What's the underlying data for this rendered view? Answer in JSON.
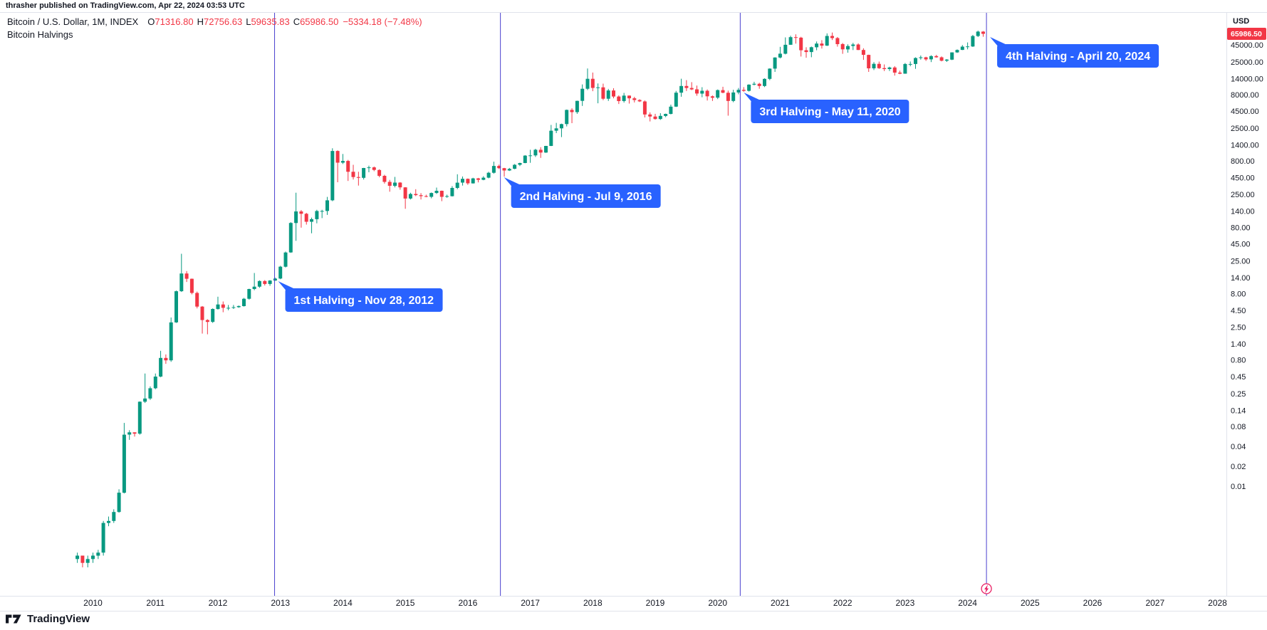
{
  "attribution": {
    "text": "thrasher published on TradingView.com, Apr 22, 2024 03:53 UTC"
  },
  "legend": {
    "symbol": "Bitcoin / U.S. Dollar, 1M, INDEX",
    "o_label": "O",
    "o_value": "71316.80",
    "h_label": "H",
    "h_value": "72756.63",
    "l_label": "L",
    "l_value": "59635.83",
    "c_label": "C",
    "c_value": "65986.50",
    "change": "−5334.18 (−7.48%)",
    "drawing_title": "Bitcoin Halvings"
  },
  "price_scale": {
    "currency_label": "USD",
    "last_price": "65986.50",
    "ticks": [
      "45000.00",
      "25000.00",
      "14000.00",
      "8000.00",
      "4500.00",
      "2500.00",
      "1400.00",
      "800.00",
      "450.00",
      "250.00",
      "140.00",
      "80.00",
      "45.00",
      "25.00",
      "14.00",
      "8.00",
      "4.50",
      "2.50",
      "1.40",
      "0.80",
      "0.45",
      "0.25",
      "0.14",
      "0.08",
      "0.04",
      "0.02",
      "0.01"
    ]
  },
  "time_scale": {
    "years": [
      "2010",
      "2011",
      "2012",
      "2013",
      "2014",
      "2015",
      "2016",
      "2017",
      "2018",
      "2019",
      "2020",
      "2021",
      "2022",
      "2023",
      "2024",
      "2025",
      "2026",
      "2027",
      "2028"
    ]
  },
  "halvings": [
    {
      "label": "1st Halving - Nov 28, 2012",
      "date": "2012-11-28"
    },
    {
      "label": "2nd Halving - Jul 9, 2016",
      "date": "2016-07-09"
    },
    {
      "label": "3rd Halving - May 11, 2020",
      "date": "2020-05-11"
    },
    {
      "label": "4th Halving - April 20, 2024",
      "date": "2024-04-20"
    }
  ],
  "footer": {
    "brand": "TradingView"
  },
  "colors": {
    "up": "#089981",
    "down": "#F23645",
    "halving_line": "#4a41cf",
    "halving_label_bg": "#2962FF",
    "badge_bg": "#F23645",
    "axis_text": "#131722",
    "border": "#e0e3eb",
    "event_icon": "#e91e63"
  },
  "chart_data": {
    "type": "candlestick",
    "title": "Bitcoin / U.S. Dollar, 1M, INDEX — Bitcoin Halvings",
    "ylabel": "USD",
    "scale": "log",
    "grid": false,
    "interval": "1M",
    "start_month": "2009-10",
    "ylim": [
      0.0005,
      90000
    ],
    "ohlc": [
      [
        0.0008,
        0.001,
        0.0007,
        0.0009
      ],
      [
        0.0009,
        0.0009,
        0.0006,
        0.0007
      ],
      [
        0.0007,
        0.0009,
        0.0006,
        0.0008
      ],
      [
        0.0008,
        0.001,
        0.0007,
        0.0009
      ],
      [
        0.0009,
        0.0011,
        0.0008,
        0.001
      ],
      [
        0.001,
        0.003,
        0.0009,
        0.0028
      ],
      [
        0.0028,
        0.0035,
        0.0025,
        0.003
      ],
      [
        0.003,
        0.0045,
        0.0028,
        0.0041
      ],
      [
        0.0041,
        0.009,
        0.004,
        0.008
      ],
      [
        0.008,
        0.09,
        0.0078,
        0.06
      ],
      [
        0.06,
        0.07,
        0.05,
        0.065
      ],
      [
        0.065,
        0.065,
        0.056,
        0.062
      ],
      [
        0.062,
        0.19,
        0.06,
        0.188
      ],
      [
        0.188,
        0.5,
        0.18,
        0.21
      ],
      [
        0.21,
        0.32,
        0.2,
        0.3
      ],
      [
        0.3,
        0.5,
        0.29,
        0.45
      ],
      [
        0.45,
        1.1,
        0.44,
        0.86
      ],
      [
        0.86,
        0.97,
        0.7,
        0.79
      ],
      [
        0.79,
        3.5,
        0.75,
        2.95
      ],
      [
        2.95,
        8.9,
        2.9,
        8.7
      ],
      [
        8.7,
        31.9,
        8.5,
        16.1
      ],
      [
        16.1,
        17.5,
        12,
        13.4
      ],
      [
        13.4,
        13.5,
        7.8,
        8.2
      ],
      [
        8.2,
        8.6,
        4.8,
        5.1
      ],
      [
        5.1,
        5.2,
        2,
        3.2
      ],
      [
        3.2,
        3.3,
        1.95,
        3
      ],
      [
        3,
        4.8,
        2.9,
        4.7
      ],
      [
        4.7,
        7.2,
        4.6,
        5.5
      ],
      [
        5.5,
        6.1,
        4.2,
        4.9
      ],
      [
        4.9,
        5.4,
        4.5,
        4.9
      ],
      [
        4.9,
        5.4,
        4.7,
        5
      ],
      [
        5,
        5.3,
        4.9,
        5.2
      ],
      [
        5.2,
        6.9,
        5.1,
        6.7
      ],
      [
        6.7,
        9.5,
        6.5,
        9.4
      ],
      [
        9.4,
        16.4,
        9,
        10.2
      ],
      [
        10.2,
        12.7,
        9.8,
        12.4
      ],
      [
        12.4,
        12.8,
        10.6,
        11.2
      ],
      [
        11.2,
        12.8,
        10.5,
        12.6
      ],
      [
        12.6,
        13.9,
        12.5,
        13.5
      ],
      [
        13.5,
        21,
        13.2,
        20.4
      ],
      [
        20.4,
        34.5,
        19.8,
        33.4
      ],
      [
        33.4,
        95.7,
        33,
        93
      ],
      [
        93,
        266,
        50,
        139
      ],
      [
        139,
        146,
        79,
        128
      ],
      [
        128,
        132,
        88,
        97
      ],
      [
        97,
        112,
        65,
        106
      ],
      [
        106,
        147,
        92,
        141
      ],
      [
        141,
        147,
        110,
        141
      ],
      [
        141,
        230,
        123,
        204
      ],
      [
        204,
        1242,
        198,
        1130
      ],
      [
        1130,
        1156,
        382,
        754
      ],
      [
        754,
        1020,
        720,
        800
      ],
      [
        800,
        830,
        400,
        550
      ],
      [
        550,
        700,
        420,
        458
      ],
      [
        458,
        550,
        340,
        446
      ],
      [
        446,
        630,
        420,
        627
      ],
      [
        627,
        680,
        540,
        640
      ],
      [
        640,
        660,
        560,
        585
      ],
      [
        585,
        600,
        455,
        478
      ],
      [
        478,
        495,
        365,
        387
      ],
      [
        387,
        415,
        275,
        338
      ],
      [
        338,
        460,
        320,
        378
      ],
      [
        378,
        384,
        295,
        320
      ],
      [
        320,
        322,
        152,
        217
      ],
      [
        217,
        265,
        210,
        254
      ],
      [
        254,
        300,
        236,
        244
      ],
      [
        244,
        262,
        210,
        236
      ],
      [
        236,
        248,
        227,
        230
      ],
      [
        230,
        268,
        219,
        263
      ],
      [
        263,
        318,
        255,
        284
      ],
      [
        284,
        286,
        198,
        230
      ],
      [
        230,
        248,
        223,
        236
      ],
      [
        236,
        334,
        233,
        314
      ],
      [
        314,
        504,
        300,
        377
      ],
      [
        377,
        467,
        340,
        430
      ],
      [
        430,
        436,
        350,
        368
      ],
      [
        368,
        447,
        365,
        437
      ],
      [
        437,
        444,
        380,
        416
      ],
      [
        416,
        470,
        410,
        448
      ],
      [
        448,
        550,
        438,
        531
      ],
      [
        531,
        780,
        515,
        673
      ],
      [
        673,
        705,
        605,
        624
      ],
      [
        624,
        630,
        465,
        575
      ],
      [
        575,
        628,
        565,
        609
      ],
      [
        609,
        720,
        600,
        700
      ],
      [
        700,
        755,
        670,
        745
      ],
      [
        745,
        980,
        740,
        963
      ],
      [
        963,
        1180,
        750,
        970
      ],
      [
        970,
        1220,
        920,
        1179
      ],
      [
        1179,
        1290,
        890,
        1071
      ],
      [
        1071,
        1350,
        1060,
        1347
      ],
      [
        1347,
        2790,
        1340,
        2286
      ],
      [
        2286,
        3000,
        2100,
        2480
      ],
      [
        2480,
        2920,
        1830,
        2875
      ],
      [
        2875,
        4765,
        2650,
        4703
      ],
      [
        4703,
        4980,
        2970,
        4360
      ],
      [
        4360,
        6480,
        4110,
        6440
      ],
      [
        6440,
        11400,
        5400,
        9800
      ],
      [
        9800,
        19800,
        9380,
        13850
      ],
      [
        13850,
        17200,
        9000,
        10100
      ],
      [
        10100,
        11790,
        5920,
        10300
      ],
      [
        10300,
        11700,
        6600,
        6930
      ],
      [
        6930,
        9760,
        6430,
        9240
      ],
      [
        9240,
        9990,
        7040,
        7490
      ],
      [
        7490,
        7780,
        5770,
        6400
      ],
      [
        6400,
        8500,
        6070,
        7730
      ],
      [
        7730,
        7770,
        5860,
        7030
      ],
      [
        7030,
        7410,
        6100,
        6630
      ],
      [
        6630,
        6810,
        6190,
        6320
      ],
      [
        6320,
        6540,
        3620,
        4020
      ],
      [
        4020,
        4310,
        3150,
        3740
      ],
      [
        3740,
        4110,
        3350,
        3430
      ],
      [
        3430,
        4200,
        3330,
        3820
      ],
      [
        3820,
        4140,
        3660,
        4100
      ],
      [
        4100,
        5650,
        4030,
        5270
      ],
      [
        5270,
        9100,
        5210,
        8560
      ],
      [
        8560,
        13880,
        7430,
        10800
      ],
      [
        10800,
        13200,
        9080,
        10080
      ],
      [
        10080,
        12320,
        9360,
        9600
      ],
      [
        9600,
        10950,
        7700,
        8290
      ],
      [
        8290,
        10350,
        7300,
        9150
      ],
      [
        9150,
        9550,
        6520,
        7550
      ],
      [
        7550,
        7760,
        6430,
        7190
      ],
      [
        7190,
        9570,
        6850,
        9350
      ],
      [
        9350,
        10500,
        8400,
        8540
      ],
      [
        8540,
        9180,
        3850,
        6420
      ],
      [
        6420,
        9460,
        6140,
        8620
      ],
      [
        8620,
        10070,
        8100,
        9450
      ],
      [
        9450,
        10380,
        8830,
        9140
      ],
      [
        9140,
        11450,
        8900,
        11320
      ],
      [
        11320,
        12480,
        11000,
        11650
      ],
      [
        11650,
        12050,
        9800,
        10780
      ],
      [
        10780,
        14100,
        10400,
        13800
      ],
      [
        13800,
        19900,
        13200,
        19700
      ],
      [
        19700,
        29300,
        17600,
        28990
      ],
      [
        28990,
        41950,
        28150,
        33100
      ],
      [
        33100,
        58350,
        32300,
        45160
      ],
      [
        45160,
        61800,
        44950,
        58770
      ],
      [
        58770,
        64850,
        46930,
        57720
      ],
      [
        57720,
        59500,
        30000,
        37280
      ],
      [
        37280,
        41330,
        28800,
        35040
      ],
      [
        35040,
        42400,
        29300,
        41460
      ],
      [
        41460,
        50500,
        37330,
        47100
      ],
      [
        47100,
        52950,
        39600,
        43790
      ],
      [
        43790,
        67000,
        43280,
        61300
      ],
      [
        61300,
        69000,
        53250,
        56950
      ],
      [
        56950,
        59100,
        42330,
        46210
      ],
      [
        46210,
        47990,
        32950,
        38480
      ],
      [
        38480,
        45820,
        34300,
        43190
      ],
      [
        43190,
        48240,
        37550,
        45530
      ],
      [
        45530,
        47450,
        37580,
        37630
      ],
      [
        37630,
        40000,
        26700,
        31790
      ],
      [
        31790,
        31980,
        17600,
        19920
      ],
      [
        19920,
        24670,
        18780,
        23290
      ],
      [
        23290,
        25200,
        19520,
        20050
      ],
      [
        20050,
        22800,
        18120,
        19420
      ],
      [
        19420,
        21080,
        18190,
        20490
      ],
      [
        20490,
        21480,
        15480,
        17160
      ],
      [
        17160,
        18370,
        16260,
        16540
      ],
      [
        16540,
        23960,
        16490,
        23130
      ],
      [
        23130,
        25250,
        21400,
        23140
      ],
      [
        23140,
        29180,
        19550,
        28470
      ],
      [
        28470,
        31050,
        26940,
        29230
      ],
      [
        29230,
        29820,
        25800,
        27210
      ],
      [
        27210,
        31400,
        24750,
        30470
      ],
      [
        30470,
        31800,
        28860,
        29230
      ],
      [
        29230,
        30180,
        25350,
        25930
      ],
      [
        25930,
        27480,
        24900,
        26960
      ],
      [
        26960,
        34700,
        26530,
        34650
      ],
      [
        34650,
        38420,
        34080,
        37710
      ],
      [
        37710,
        44700,
        37610,
        42280
      ],
      [
        42280,
        48970,
        38500,
        42580
      ],
      [
        42580,
        63590,
        41880,
        61200
      ],
      [
        61200,
        73800,
        59000,
        71330
      ],
      [
        71316.8,
        72756.63,
        59635.83,
        65986.5
      ]
    ]
  }
}
